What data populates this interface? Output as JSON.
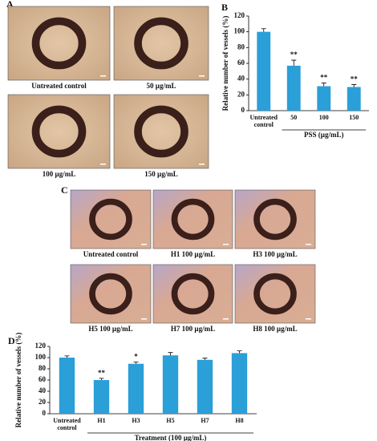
{
  "panels": [
    "A",
    "B",
    "C",
    "D"
  ],
  "images": [
    {
      "caption": "Untreated control"
    },
    {
      "caption": "50 µg/mL"
    },
    {
      "caption": "100 µg/mL"
    },
    {
      "caption": "150 µg/mL"
    },
    {
      "caption": "Untreated control"
    },
    {
      "caption": "H1  100 µg/mL"
    },
    {
      "caption": "H3  100 µg/mL"
    },
    {
      "caption": "H5  100 µg/mL"
    },
    {
      "caption": "H7  100 µg/mL"
    },
    {
      "caption": "H8  100 µg/mL"
    }
  ],
  "chart_data": [
    {
      "type": "bar",
      "y_label": "Relative number of vessels (%)",
      "x_label": "PSS (µg/mL)",
      "categories": [
        "Untreated control",
        "50",
        "100",
        "150"
      ],
      "values": [
        100,
        57,
        31,
        30
      ],
      "errors": [
        4,
        7,
        4,
        3
      ],
      "significance": [
        null,
        "**",
        "**",
        "**"
      ],
      "color": "#2a9fd8",
      "ylim": [
        0,
        120
      ],
      "yticks": [
        0,
        20,
        40,
        60,
        80,
        100,
        120
      ]
    },
    {
      "type": "bar",
      "y_label": "Relative number of vessels (%)",
      "x_label": "Treatment (100 µg/mL)",
      "categories": [
        "Untreated control",
        "H1",
        "H3",
        "H5",
        "H7",
        "H8"
      ],
      "values": [
        100,
        60,
        89,
        104,
        96,
        108
      ],
      "errors": [
        3,
        3,
        3,
        5,
        3,
        4
      ],
      "significance": [
        null,
        "**",
        "*",
        null,
        null,
        null
      ],
      "color": "#2a9fd8",
      "ylim": [
        0,
        120
      ],
      "yticks": [
        0,
        20,
        40,
        60,
        80,
        100,
        120
      ]
    }
  ]
}
